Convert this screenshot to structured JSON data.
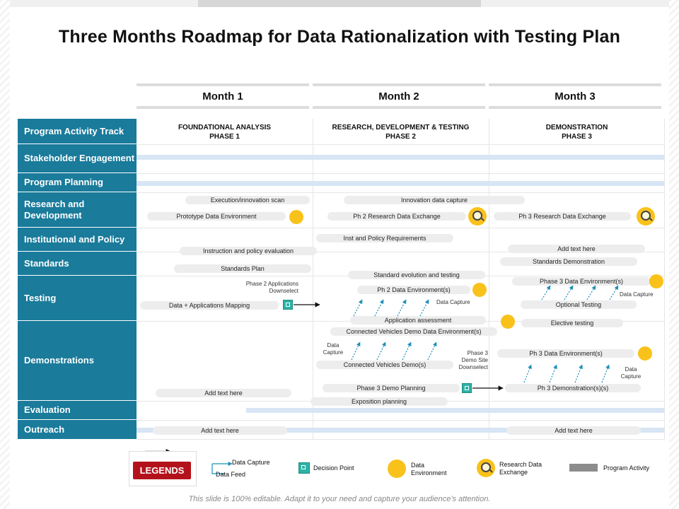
{
  "title": "Three Months Roadmap for Data Rationalization with Testing Plan",
  "months": [
    "Month 1",
    "Month 2",
    "Month 3"
  ],
  "phases": [
    {
      "line1": "FOUNDATIONAL ANALYSIS",
      "line2": "PHASE 1"
    },
    {
      "line1": "RESEARCH,  DEVELOPMENT & TESTING",
      "line2": "PHASE 2"
    },
    {
      "line1": "DEMONSTRATION",
      "line2": "PHASE 3"
    }
  ],
  "rows": [
    "Program Activity Track",
    "Stakeholder Engagement",
    "Program Planning",
    "Research and Development",
    "Institutional and Policy",
    "Standards",
    "Testing",
    "Demonstrations",
    "Evaluation",
    "Outreach"
  ],
  "activities": {
    "execution_scan": "Execution/innovation scan",
    "prototype_env": "Prototype Data Environment",
    "innovation_capture": "Innovation data capture",
    "ph2_research_exchange": "Ph 2 Research Data Exchange",
    "ph3_research_exchange": "Ph 3 Research Data Exchange",
    "inst_policy_req": "Inst and Policy Requirements",
    "instruction_eval": "Instruction and policy evaluation",
    "add_text_1": "Add text here",
    "standards_demo": "Standards Demonstration",
    "standards_plan": "Standards Plan",
    "standard_evolution": "Standard evolution  and testing",
    "phase3_env": "Phase 3 Data Environment(s)",
    "ph2_env": "Ph 2 Data Environment(s)",
    "data_apps_mapping": "Data + Applications Mapping",
    "optional_testing": "Optional Testing",
    "app_assessment": "Application assessment",
    "elective_testing": "Elective testing",
    "cv_demo_env": "Connected Vehicles Demo Data Environment(s)",
    "ph3_env": "Ph 3 Data Environment(s)",
    "cv_demos": "Connected Vehicles Demo(s)",
    "phase3_demo_planning": "Phase 3 Demo Planning",
    "ph3_demonstrations": "Ph 3 Demonstration(s)(s)",
    "add_text_2": "Add text here",
    "exposition_planning": "Exposition planning",
    "add_text_3": "Add text here",
    "add_text_4": "Add text here"
  },
  "notes": {
    "ph2_app_l1": "Phase 2 Applications",
    "ph2_app_l2": "Downselect",
    "data_capture_a": "Data Capture",
    "data_capture_b": "Data Capture",
    "data_capture_c1": "Data",
    "data_capture_c2": "Capture",
    "ph3_site_l1": "Phase 3",
    "ph3_site_l2": "Demo Site",
    "ph3_site_l3": "Downselect",
    "data_capture_d1": "Data",
    "data_capture_d2": "Capture"
  },
  "legend": {
    "button": "LEGENDS",
    "data_capture": "Data Capture",
    "data_feed": "Data Feed",
    "decision_point": "Decision Point",
    "data_env_l1": "Data",
    "data_env_l2": "Environment",
    "research_l1": "Research Data",
    "research_l2": "Exchange",
    "program_activity": "Program Activity"
  },
  "colors": {
    "row_label": "#1a7b9b",
    "band": "#d7e5f5",
    "data_env": "#f9c21b",
    "decision": "#2bb3a6",
    "arrow": "#1a8fb5",
    "legend_button": "#b4121b"
  },
  "footer": "This slide is 100% editable. Adapt it to your need and capture your audience’s attention."
}
